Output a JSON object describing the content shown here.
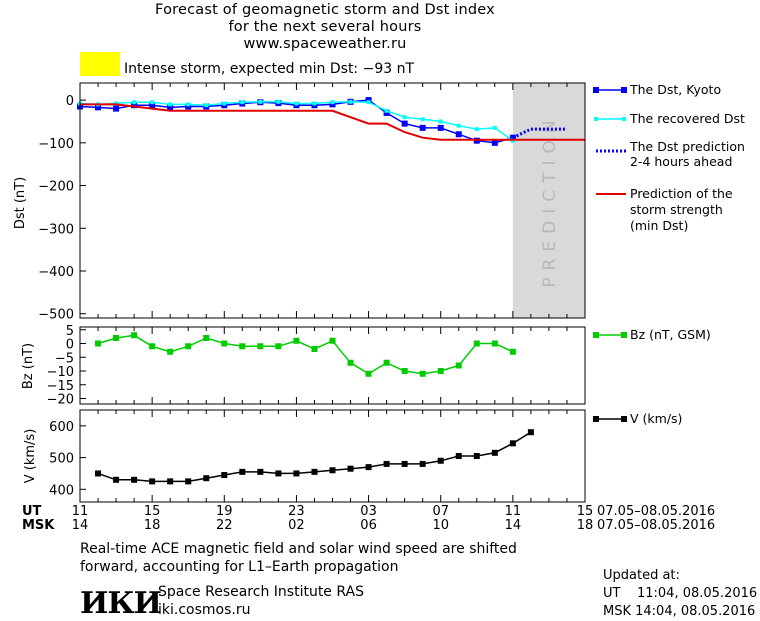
{
  "title_lines": [
    "Forecast of geomagnetic storm and Dst index",
    "for the next several hours",
    "www.spaceweather.ru"
  ],
  "storm_status": {
    "text": "Intense storm, expected min Dst: −93 nT",
    "color": "#ffff00"
  },
  "legend": {
    "dst_kyoto": "The Dst, Kyoto",
    "dst_recovered": "The recovered Dst",
    "dst_prediction_line1": "The Dst prediction",
    "dst_prediction_line2": "2-4 hours ahead",
    "storm_pred_line1": "Prediction of the",
    "storm_pred_line2": "storm strength",
    "storm_pred_line3": "(min Dst)",
    "bz": "Bz (nT, GSM)",
    "v": "V (km/s)"
  },
  "prediction_label": "PREDICTION",
  "time_axis": {
    "ut_label": "UT",
    "msk_label": "MSK",
    "ut_ticks": [
      "11",
      "15",
      "19",
      "23",
      "03",
      "07",
      "11",
      "15"
    ],
    "msk_ticks": [
      "14",
      "18",
      "22",
      "02",
      "06",
      "10",
      "14",
      "18"
    ],
    "ut_range": "07.05–08.05.2016",
    "msk_range": "07.05–08.05.2016"
  },
  "footer": {
    "note_line1": "Real-time ACE magnetic field and solar wind speed are shifted",
    "note_line2": "forward, accounting for L1–Earth propagation",
    "institute": "Space Research Institute RAS",
    "website": "iki.cosmos.ru",
    "logo_text": "ИКИ",
    "updated_label": "Updated at:",
    "updated_ut": "UT    11:04, 08.05.2016",
    "updated_msk": "MSK 14:04, 08.05.2016"
  },
  "chart_data": [
    {
      "type": "line",
      "ylabel": "Dst (nT)",
      "ylim": [
        -510,
        40
      ],
      "yticks": [
        0,
        -100,
        -200,
        -300,
        -400,
        -500
      ],
      "xlim": [
        11,
        39
      ],
      "prediction_region": [
        35,
        39
      ],
      "series": [
        {
          "name": "The Dst, Kyoto",
          "color": "#0000ff",
          "x": [
            11,
            12,
            13,
            14,
            15,
            16,
            17,
            18,
            19,
            20,
            21,
            22,
            23,
            24,
            25,
            26,
            27,
            28,
            29,
            30,
            31,
            32,
            33,
            34,
            35
          ],
          "y": [
            -15,
            -17,
            -20,
            -12,
            -12,
            -17,
            -15,
            -15,
            -12,
            -8,
            -5,
            -7,
            -12,
            -12,
            -10,
            -4,
            0,
            -30,
            -55,
            -65,
            -65,
            -80,
            -95,
            -100,
            -88
          ]
        },
        {
          "name": "The recovered Dst",
          "color": "#00ffff",
          "x": [
            11,
            12,
            13,
            14,
            15,
            16,
            17,
            18,
            19,
            20,
            21,
            22,
            23,
            24,
            25,
            26,
            27,
            28,
            29,
            30,
            31,
            32,
            33,
            34,
            35
          ],
          "y": [
            -8,
            -10,
            -8,
            -5,
            -5,
            -10,
            -10,
            -12,
            -8,
            -5,
            -4,
            -4,
            -8,
            -8,
            -5,
            -4,
            -5,
            -25,
            -40,
            -45,
            -50,
            -60,
            -68,
            -65,
            -95
          ]
        },
        {
          "name": "The Dst prediction 2-4 hours ahead",
          "color": "#0000ff",
          "x": [
            35,
            36,
            37,
            38
          ],
          "y": [
            -88,
            -68,
            -68,
            -68
          ]
        },
        {
          "name": "Prediction of the storm strength (min Dst)",
          "color": "#e00000",
          "x": [
            11,
            13,
            15,
            16,
            25,
            26,
            27,
            28,
            29,
            30,
            31,
            32,
            35,
            39
          ],
          "y": [
            -10,
            -10,
            -20,
            -25,
            -25,
            -40,
            -55,
            -55,
            -75,
            -88,
            -93,
            -93,
            -93,
            -93
          ]
        }
      ]
    },
    {
      "type": "line",
      "ylabel": "Bz (nT)",
      "ylim": [
        -22,
        6
      ],
      "yticks": [
        5,
        0,
        -5,
        -10,
        -15,
        -20
      ],
      "xlim": [
        11,
        39
      ],
      "series": [
        {
          "name": "Bz (nT, GSM)",
          "color": "#00cc00",
          "x": [
            12,
            13,
            14,
            15,
            16,
            17,
            18,
            19,
            20,
            21,
            22,
            23,
            24,
            25,
            26,
            27,
            28,
            29,
            30,
            31,
            32,
            33,
            34,
            35
          ],
          "y": [
            0,
            2,
            3,
            -1,
            -3,
            -1,
            2,
            0,
            -1,
            -1,
            -1,
            1,
            -2,
            1,
            -7,
            -11,
            -7,
            -10,
            -11,
            -10,
            -8,
            0,
            0,
            -3
          ]
        }
      ]
    },
    {
      "type": "line",
      "ylabel": "V (km/s)",
      "ylim": [
        360,
        650
      ],
      "yticks": [
        400,
        500,
        600
      ],
      "xlim": [
        11,
        39
      ],
      "series": [
        {
          "name": "V (km/s)",
          "color": "#000000",
          "x": [
            12,
            13,
            14,
            15,
            16,
            17,
            18,
            19,
            20,
            21,
            22,
            23,
            24,
            25,
            26,
            27,
            28,
            29,
            30,
            31,
            32,
            33,
            34,
            35,
            36
          ],
          "y": [
            450,
            430,
            430,
            425,
            425,
            425,
            435,
            445,
            455,
            455,
            450,
            450,
            455,
            460,
            465,
            470,
            480,
            480,
            480,
            490,
            505,
            505,
            515,
            545,
            580
          ]
        }
      ]
    }
  ]
}
